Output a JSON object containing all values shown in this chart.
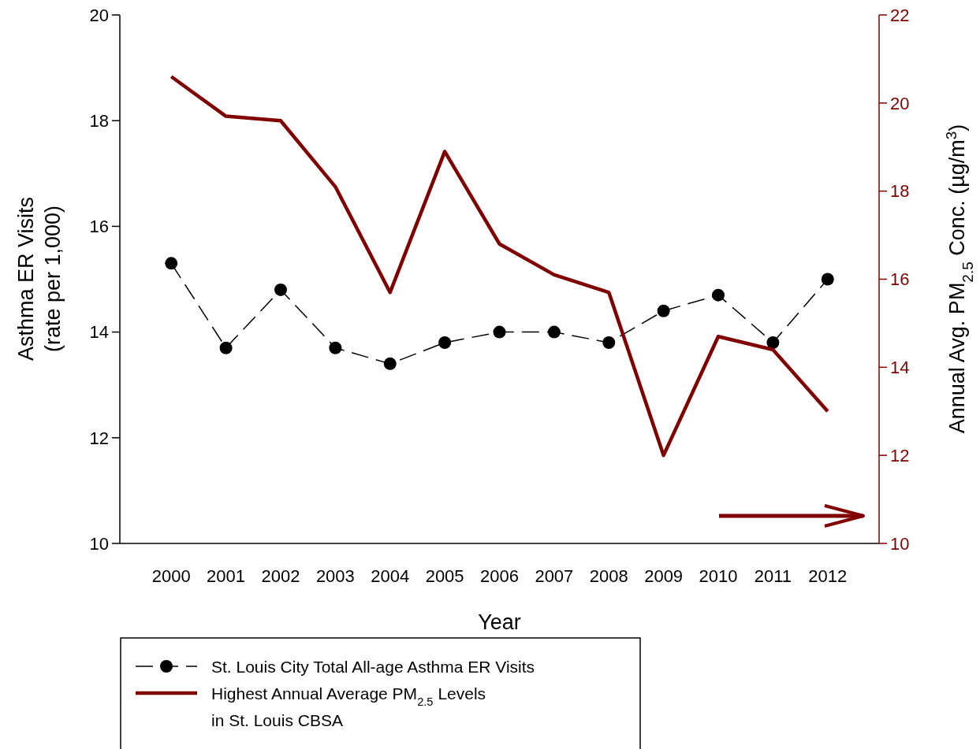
{
  "chart_data": {
    "type": "line",
    "xlabel": "Year",
    "ylabel": "Asthma ER Visits\n(rate per 1,000)",
    "y2label": "Annual Avg. PM$_{2.5}$ Conc. (µg/m$^{3}$)",
    "categories": [
      "2000",
      "2001",
      "2002",
      "2003",
      "2004",
      "2005",
      "2006",
      "2007",
      "2008",
      "2009",
      "2010",
      "2011",
      "2012"
    ],
    "series": [
      {
        "name": "St. Louis City Total All-age Asthma ER Visits",
        "color": "#000000",
        "marker": "circle",
        "line_style": "dashed",
        "values": [
          15.3,
          13.7,
          14.8,
          13.7,
          13.4,
          13.8,
          14.0,
          14.0,
          13.8,
          14.4,
          14.7,
          13.8,
          15.0
        ]
      },
      {
        "name": "Highest Annual Average PM$_{2.5}$ Levels\nin St. Louis CBSA",
        "color": "#800000",
        "marker": "none",
        "line_style": "solid",
        "axis": "y2",
        "values": [
          20.6,
          19.7,
          19.6,
          18.1,
          15.7,
          18.9,
          16.8,
          16.1,
          15.7,
          12.0,
          14.7,
          14.4,
          13.0
        ]
      }
    ],
    "ylim": [
      10,
      20
    ],
    "yticks": [
      10,
      12,
      14,
      16,
      18,
      20
    ],
    "y2lim": [
      10,
      22
    ],
    "y2ticks": [
      10,
      12,
      14,
      16,
      18,
      20,
      22
    ],
    "grid": false,
    "legend": "bottom left"
  }
}
